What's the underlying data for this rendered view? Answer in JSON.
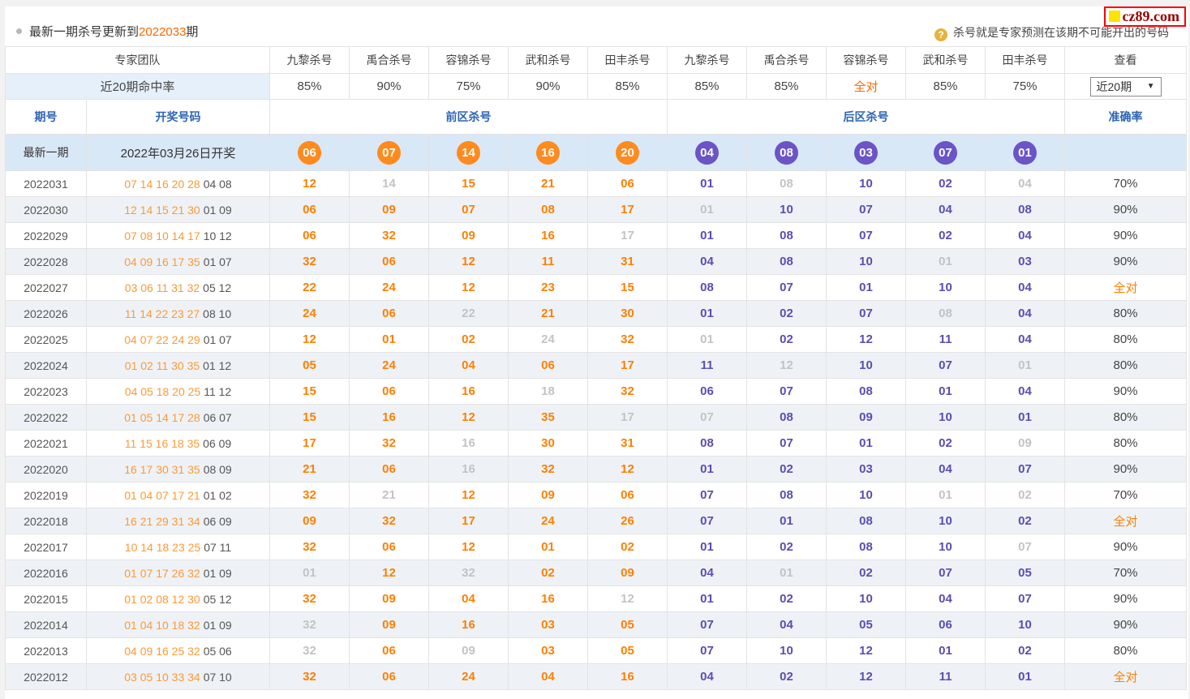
{
  "page": {
    "update_notice_prefix": "最新一期杀号更新到",
    "update_notice_issue": "2022033",
    "update_notice_suffix": "期",
    "help_icon": "question-mark-icon",
    "help_text": "杀号就是专家预测在该期不可能开出的号码",
    "logo_text": "cz89.com"
  },
  "colors": {
    "accent_orange": "#ff7f00",
    "draw_orange": "#ff9933",
    "ball_orange": "#ff8a1e",
    "ball_purple": "#6a54c6",
    "kill_purple": "#5b4db1",
    "miss_gray": "#c3c3c3",
    "header_blue": "#2d64b3",
    "latest_row_bg": "#d9e8f6",
    "stripe_bg": "#eef2f7",
    "logo_red": "#990000"
  },
  "table": {
    "header": {
      "team_label": "专家团队",
      "expert_columns": [
        "九黎杀号",
        "禹合杀号",
        "容锦杀号",
        "武和杀号",
        "田丰杀号",
        "九黎杀号",
        "禹合杀号",
        "容锦杀号",
        "武和杀号",
        "田丰杀号"
      ],
      "view_label": "查看",
      "hit_rate_label": "近20期命中率",
      "hit_rates": [
        "85%",
        "90%",
        "75%",
        "90%",
        "85%",
        "85%",
        "85%",
        "全对",
        "85%",
        "75%"
      ],
      "range_select_value": "近20期",
      "issue_label": "期号",
      "draw_label": "开奖号码",
      "front_label": "前区杀号",
      "back_label": "后区杀号",
      "accuracy_label": "准确率"
    },
    "latest_row": {
      "issue_label": "最新一期",
      "draw_text": "2022年03月26日开奖",
      "front_kills": [
        "06",
        "07",
        "14",
        "16",
        "20"
      ],
      "back_kills": [
        "04",
        "08",
        "03",
        "07",
        "01"
      ]
    },
    "rows": [
      {
        "issue": "2022031",
        "front_draw": "07 14 16 20 28",
        "back_draw": "04 08",
        "front_kills": [
          "12",
          "14",
          "15",
          "21",
          "06"
        ],
        "front_miss": [
          false,
          true,
          false,
          false,
          false
        ],
        "back_kills": [
          "01",
          "08",
          "10",
          "02",
          "04"
        ],
        "back_miss": [
          false,
          true,
          false,
          false,
          true
        ],
        "accuracy": "70%",
        "accuracy_full": false
      },
      {
        "issue": "2022030",
        "front_draw": "12 14 15 21 30",
        "back_draw": "01 09",
        "front_kills": [
          "06",
          "09",
          "07",
          "08",
          "17"
        ],
        "front_miss": [
          false,
          false,
          false,
          false,
          false
        ],
        "back_kills": [
          "01",
          "10",
          "07",
          "04",
          "08"
        ],
        "back_miss": [
          true,
          false,
          false,
          false,
          false
        ],
        "accuracy": "90%",
        "accuracy_full": false
      },
      {
        "issue": "2022029",
        "front_draw": "07 08 10 14 17",
        "back_draw": "10 12",
        "front_kills": [
          "06",
          "32",
          "09",
          "16",
          "17"
        ],
        "front_miss": [
          false,
          false,
          false,
          false,
          true
        ],
        "back_kills": [
          "01",
          "08",
          "07",
          "02",
          "04"
        ],
        "back_miss": [
          false,
          false,
          false,
          false,
          false
        ],
        "accuracy": "90%",
        "accuracy_full": false
      },
      {
        "issue": "2022028",
        "front_draw": "04 09 16 17 35",
        "back_draw": "01 07",
        "front_kills": [
          "32",
          "06",
          "12",
          "11",
          "31"
        ],
        "front_miss": [
          false,
          false,
          false,
          false,
          false
        ],
        "back_kills": [
          "04",
          "08",
          "10",
          "01",
          "03"
        ],
        "back_miss": [
          false,
          false,
          false,
          true,
          false
        ],
        "accuracy": "90%",
        "accuracy_full": false
      },
      {
        "issue": "2022027",
        "front_draw": "03 06 11 31 32",
        "back_draw": "05 12",
        "front_kills": [
          "22",
          "24",
          "12",
          "23",
          "15"
        ],
        "front_miss": [
          false,
          false,
          false,
          false,
          false
        ],
        "back_kills": [
          "08",
          "07",
          "01",
          "10",
          "04"
        ],
        "back_miss": [
          false,
          false,
          false,
          false,
          false
        ],
        "accuracy": "全对",
        "accuracy_full": true
      },
      {
        "issue": "2022026",
        "front_draw": "11 14 22 23 27",
        "back_draw": "08 10",
        "front_kills": [
          "24",
          "06",
          "22",
          "21",
          "30"
        ],
        "front_miss": [
          false,
          false,
          true,
          false,
          false
        ],
        "back_kills": [
          "01",
          "02",
          "07",
          "08",
          "04"
        ],
        "back_miss": [
          false,
          false,
          false,
          true,
          false
        ],
        "accuracy": "80%",
        "accuracy_full": false
      },
      {
        "issue": "2022025",
        "front_draw": "04 07 22 24 29",
        "back_draw": "01 07",
        "front_kills": [
          "12",
          "01",
          "02",
          "24",
          "32"
        ],
        "front_miss": [
          false,
          false,
          false,
          true,
          false
        ],
        "back_kills": [
          "01",
          "02",
          "12",
          "11",
          "04"
        ],
        "back_miss": [
          true,
          false,
          false,
          false,
          false
        ],
        "accuracy": "80%",
        "accuracy_full": false
      },
      {
        "issue": "2022024",
        "front_draw": "01 02 11 30 35",
        "back_draw": "01 12",
        "front_kills": [
          "05",
          "24",
          "04",
          "06",
          "17"
        ],
        "front_miss": [
          false,
          false,
          false,
          false,
          false
        ],
        "back_kills": [
          "11",
          "12",
          "10",
          "07",
          "01"
        ],
        "back_miss": [
          false,
          true,
          false,
          false,
          true
        ],
        "accuracy": "80%",
        "accuracy_full": false
      },
      {
        "issue": "2022023",
        "front_draw": "04 05 18 20 25",
        "back_draw": "11 12",
        "front_kills": [
          "15",
          "06",
          "16",
          "18",
          "32"
        ],
        "front_miss": [
          false,
          false,
          false,
          true,
          false
        ],
        "back_kills": [
          "06",
          "07",
          "08",
          "01",
          "04"
        ],
        "back_miss": [
          false,
          false,
          false,
          false,
          false
        ],
        "accuracy": "90%",
        "accuracy_full": false
      },
      {
        "issue": "2022022",
        "front_draw": "01 05 14 17 28",
        "back_draw": "06 07",
        "front_kills": [
          "15",
          "16",
          "12",
          "35",
          "17"
        ],
        "front_miss": [
          false,
          false,
          false,
          false,
          true
        ],
        "back_kills": [
          "07",
          "08",
          "09",
          "10",
          "01"
        ],
        "back_miss": [
          true,
          false,
          false,
          false,
          false
        ],
        "accuracy": "80%",
        "accuracy_full": false
      },
      {
        "issue": "2022021",
        "front_draw": "11 15 16 18 35",
        "back_draw": "06 09",
        "front_kills": [
          "17",
          "32",
          "16",
          "30",
          "31"
        ],
        "front_miss": [
          false,
          false,
          true,
          false,
          false
        ],
        "back_kills": [
          "08",
          "07",
          "01",
          "02",
          "09"
        ],
        "back_miss": [
          false,
          false,
          false,
          false,
          true
        ],
        "accuracy": "80%",
        "accuracy_full": false
      },
      {
        "issue": "2022020",
        "front_draw": "16 17 30 31 35",
        "back_draw": "08 09",
        "front_kills": [
          "21",
          "06",
          "16",
          "32",
          "12"
        ],
        "front_miss": [
          false,
          false,
          true,
          false,
          false
        ],
        "back_kills": [
          "01",
          "02",
          "03",
          "04",
          "07"
        ],
        "back_miss": [
          false,
          false,
          false,
          false,
          false
        ],
        "accuracy": "90%",
        "accuracy_full": false
      },
      {
        "issue": "2022019",
        "front_draw": "01 04 07 17 21",
        "back_draw": "01 02",
        "front_kills": [
          "32",
          "21",
          "12",
          "09",
          "06"
        ],
        "front_miss": [
          false,
          true,
          false,
          false,
          false
        ],
        "back_kills": [
          "07",
          "08",
          "10",
          "01",
          "02"
        ],
        "back_miss": [
          false,
          false,
          false,
          true,
          true
        ],
        "accuracy": "70%",
        "accuracy_full": false
      },
      {
        "issue": "2022018",
        "front_draw": "16 21 29 31 34",
        "back_draw": "06 09",
        "front_kills": [
          "09",
          "32",
          "17",
          "24",
          "26"
        ],
        "front_miss": [
          false,
          false,
          false,
          false,
          false
        ],
        "back_kills": [
          "07",
          "01",
          "08",
          "10",
          "02"
        ],
        "back_miss": [
          false,
          false,
          false,
          false,
          false
        ],
        "accuracy": "全对",
        "accuracy_full": true
      },
      {
        "issue": "2022017",
        "front_draw": "10 14 18 23 25",
        "back_draw": "07 11",
        "front_kills": [
          "32",
          "06",
          "12",
          "01",
          "02"
        ],
        "front_miss": [
          false,
          false,
          false,
          false,
          false
        ],
        "back_kills": [
          "01",
          "02",
          "08",
          "10",
          "07"
        ],
        "back_miss": [
          false,
          false,
          false,
          false,
          true
        ],
        "accuracy": "90%",
        "accuracy_full": false
      },
      {
        "issue": "2022016",
        "front_draw": "01 07 17 26 32",
        "back_draw": "01 09",
        "front_kills": [
          "01",
          "12",
          "32",
          "02",
          "09"
        ],
        "front_miss": [
          true,
          false,
          true,
          false,
          false
        ],
        "back_kills": [
          "04",
          "01",
          "02",
          "07",
          "05"
        ],
        "back_miss": [
          false,
          true,
          false,
          false,
          false
        ],
        "accuracy": "70%",
        "accuracy_full": false
      },
      {
        "issue": "2022015",
        "front_draw": "01 02 08 12 30",
        "back_draw": "05 12",
        "front_kills": [
          "32",
          "09",
          "04",
          "16",
          "12"
        ],
        "front_miss": [
          false,
          false,
          false,
          false,
          true
        ],
        "back_kills": [
          "01",
          "02",
          "10",
          "04",
          "07"
        ],
        "back_miss": [
          false,
          false,
          false,
          false,
          false
        ],
        "accuracy": "90%",
        "accuracy_full": false
      },
      {
        "issue": "2022014",
        "front_draw": "01 04 10 18 32",
        "back_draw": "01 09",
        "front_kills": [
          "32",
          "09",
          "16",
          "03",
          "05"
        ],
        "front_miss": [
          true,
          false,
          false,
          false,
          false
        ],
        "back_kills": [
          "07",
          "04",
          "05",
          "06",
          "10"
        ],
        "back_miss": [
          false,
          false,
          false,
          false,
          false
        ],
        "accuracy": "90%",
        "accuracy_full": false
      },
      {
        "issue": "2022013",
        "front_draw": "04 09 16 25 32",
        "back_draw": "05 06",
        "front_kills": [
          "32",
          "06",
          "09",
          "03",
          "05"
        ],
        "front_miss": [
          true,
          false,
          true,
          false,
          false
        ],
        "back_kills": [
          "07",
          "10",
          "12",
          "01",
          "02"
        ],
        "back_miss": [
          false,
          false,
          false,
          false,
          false
        ],
        "accuracy": "80%",
        "accuracy_full": false
      },
      {
        "issue": "2022012",
        "front_draw": "03 05 10 33 34",
        "back_draw": "07 10",
        "front_kills": [
          "32",
          "06",
          "24",
          "04",
          "16"
        ],
        "front_miss": [
          false,
          false,
          false,
          false,
          false
        ],
        "back_kills": [
          "04",
          "02",
          "12",
          "11",
          "01"
        ],
        "back_miss": [
          false,
          false,
          false,
          false,
          false
        ],
        "accuracy": "全对",
        "accuracy_full": true
      }
    ]
  }
}
